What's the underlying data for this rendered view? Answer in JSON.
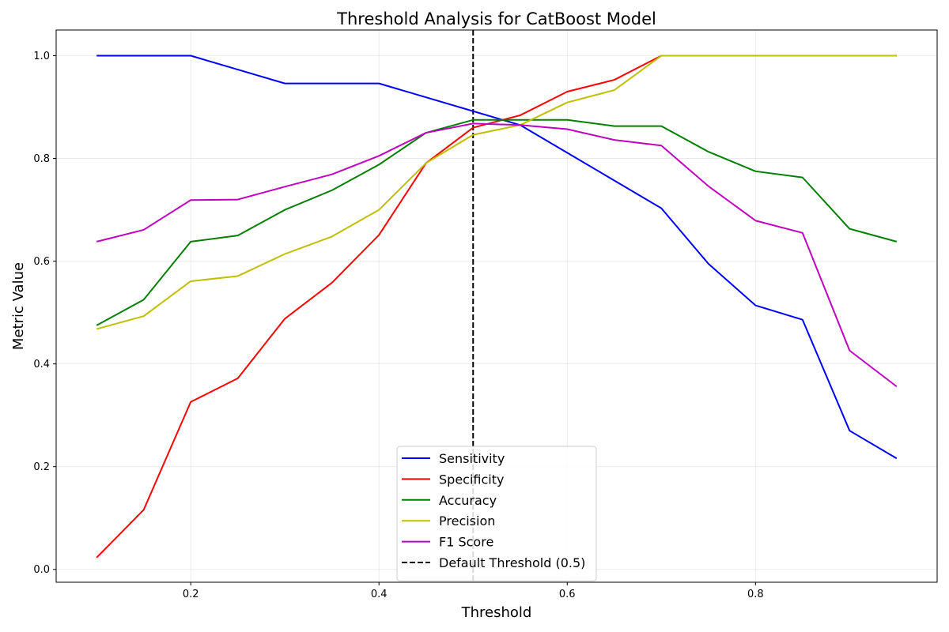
{
  "chart_data": {
    "type": "line",
    "title": "Threshold Analysis for CatBoost Model",
    "xlabel": "Threshold",
    "ylabel": "Metric Value",
    "xlim": [
      0.057,
      0.993
    ],
    "ylim": [
      -0.025,
      1.05
    ],
    "x_ticks": [
      0.2,
      0.4,
      0.6,
      0.8
    ],
    "x_tick_labels": [
      "0.2",
      "0.4",
      "0.6",
      "0.8"
    ],
    "y_ticks": [
      0.0,
      0.2,
      0.4,
      0.6,
      0.8,
      1.0
    ],
    "y_tick_labels": [
      "0.0",
      "0.2",
      "0.4",
      "0.6",
      "0.8",
      "1.0"
    ],
    "grid": true,
    "legend_position": "bottom-center",
    "x": [
      0.1,
      0.15,
      0.2,
      0.25,
      0.3,
      0.35,
      0.4,
      0.45,
      0.5,
      0.55,
      0.6,
      0.65,
      0.7,
      0.75,
      0.8,
      0.85,
      0.9,
      0.95
    ],
    "series": [
      {
        "name": "Sensitivity",
        "color": "#0000ff",
        "style": "solid",
        "values": [
          1.0,
          1.0,
          1.0,
          0.973,
          0.946,
          0.946,
          0.946,
          0.919,
          0.892,
          0.865,
          0.811,
          0.757,
          0.703,
          0.595,
          0.514,
          0.486,
          0.27,
          0.216
        ]
      },
      {
        "name": "Specificity",
        "color": "#ff0000",
        "style": "solid",
        "values": [
          0.023,
          0.116,
          0.326,
          0.372,
          0.488,
          0.558,
          0.651,
          0.791,
          0.86,
          0.884,
          0.93,
          0.953,
          1.0,
          1.0,
          1.0,
          1.0,
          1.0,
          1.0
        ]
      },
      {
        "name": "Accuracy",
        "color": "#008000",
        "style": "solid",
        "values": [
          0.475,
          0.525,
          0.638,
          0.65,
          0.7,
          0.738,
          0.788,
          0.85,
          0.875,
          0.875,
          0.875,
          0.863,
          0.863,
          0.813,
          0.775,
          0.763,
          0.663,
          0.638
        ]
      },
      {
        "name": "Precision",
        "color": "#bfbf00",
        "style": "solid",
        "values": [
          0.468,
          0.493,
          0.561,
          0.571,
          0.614,
          0.648,
          0.7,
          0.791,
          0.846,
          0.865,
          0.909,
          0.933,
          1.0,
          1.0,
          1.0,
          1.0,
          1.0,
          1.0
        ]
      },
      {
        "name": "F1 Score",
        "color": "#bf00bf",
        "style": "solid",
        "values": [
          0.638,
          0.661,
          0.719,
          0.72,
          0.745,
          0.769,
          0.805,
          0.85,
          0.868,
          0.865,
          0.857,
          0.836,
          0.825,
          0.746,
          0.679,
          0.655,
          0.426,
          0.356
        ]
      }
    ],
    "reference_line": {
      "name": "Default Threshold (0.5)",
      "x": 0.5,
      "color": "#000000",
      "style": "dashed"
    }
  }
}
